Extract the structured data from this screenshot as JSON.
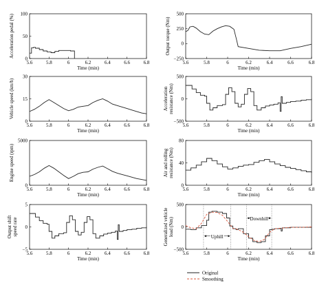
{
  "chart_data": [
    {
      "id": "accel-pedal",
      "type": "line",
      "ylabel": "Acceleration pedal (%)",
      "xlabel": "Time (min)",
      "xlim": [
        5.6,
        6.8
      ],
      "ylim": [
        0,
        100
      ],
      "xticks": [
        "5.6",
        "5.8",
        "6",
        "6.2",
        "6.4",
        "6.6",
        "6.8"
      ],
      "yticks": [
        "0",
        "50",
        "100"
      ],
      "grid": false,
      "series": [
        {
          "name": "",
          "step": true,
          "x": [
            5.6,
            5.62,
            5.64,
            5.66,
            5.7,
            5.74,
            5.78,
            5.82,
            5.86,
            5.9,
            5.94,
            5.98,
            6.02,
            6.06,
            6.061
          ],
          "y": [
            12,
            24,
            25,
            23,
            20,
            17,
            15,
            13,
            16,
            18,
            18,
            18,
            17,
            17,
            0
          ]
        }
      ]
    },
    {
      "id": "output-torque",
      "type": "line",
      "ylabel": "Output torque (Nm)",
      "xlabel": "Time (min)",
      "xlim": [
        5.6,
        6.8
      ],
      "ylim": [
        -250,
        500
      ],
      "xticks": [
        "5.6",
        "5.8",
        "6",
        "6.2",
        "6.4",
        "6.6",
        "6.8"
      ],
      "yticks": [
        "−250",
        "0",
        "250",
        "500"
      ],
      "grid": false,
      "series": [
        {
          "name": "",
          "step": false,
          "x": [
            5.6,
            5.62,
            5.64,
            5.67,
            5.7,
            5.74,
            5.78,
            5.82,
            5.86,
            5.9,
            5.94,
            5.98,
            6.02,
            6.06,
            6.08,
            6.1,
            6.2,
            6.3,
            6.4,
            6.5,
            6.6,
            6.7,
            6.8
          ],
          "y": [
            200,
            220,
            280,
            290,
            260,
            200,
            160,
            150,
            210,
            250,
            280,
            300,
            290,
            240,
            100,
            -50,
            -80,
            -110,
            -120,
            -120,
            -80,
            -50,
            -10
          ]
        }
      ]
    },
    {
      "id": "vehicle-speed",
      "type": "line",
      "ylabel": "Vehicle speed (km/h)",
      "xlabel": "Time (min)",
      "xlim": [
        5.6,
        6.8
      ],
      "ylim": [
        0,
        30
      ],
      "xticks": [
        "5.6",
        "5.8",
        "6",
        "6.2",
        "6.4",
        "6.6",
        "6.8"
      ],
      "yticks": [
        "0",
        "15",
        "30"
      ],
      "grid": false,
      "series": [
        {
          "name": "",
          "step": false,
          "x": [
            5.6,
            5.65,
            5.7,
            5.75,
            5.8,
            5.85,
            5.9,
            5.95,
            6.0,
            6.05,
            6.1,
            6.15,
            6.2,
            6.25,
            6.3,
            6.35,
            6.4,
            6.45,
            6.5,
            6.55,
            6.6,
            6.65,
            6.7,
            6.75,
            6.8
          ],
          "y": [
            6.5,
            8,
            10,
            12.5,
            14.5,
            12.5,
            10.5,
            8.5,
            7,
            8,
            9.5,
            10,
            10.5,
            12.5,
            14,
            15,
            13.5,
            11.5,
            10.5,
            9.5,
            8.5,
            7.5,
            6.5,
            5.5,
            5
          ]
        }
      ]
    },
    {
      "id": "accel-resistance",
      "type": "line",
      "ylabel": "Acceleration resistance (Nm)",
      "xlabel": "Time (min)",
      "xlim": [
        5.6,
        6.8
      ],
      "ylim": [
        -500,
        500
      ],
      "xticks": [
        "5.6",
        "5.8",
        "6",
        "6.2",
        "6.4",
        "6.6",
        "6.8"
      ],
      "yticks": [
        "−500",
        "0",
        "500"
      ],
      "grid": false,
      "series": [
        {
          "name": "",
          "step": true,
          "x": [
            5.6,
            5.63,
            5.66,
            5.7,
            5.74,
            5.78,
            5.8,
            5.83,
            5.86,
            5.9,
            5.95,
            5.98,
            6.01,
            6.04,
            6.07,
            6.1,
            6.13,
            6.16,
            6.19,
            6.22,
            6.25,
            6.28,
            6.32,
            6.36,
            6.4,
            6.44,
            6.48,
            6.5,
            6.51,
            6.52,
            6.56,
            6.6,
            6.65,
            6.7,
            6.75,
            6.8
          ],
          "y": [
            300,
            300,
            220,
            140,
            80,
            60,
            -100,
            -250,
            -200,
            -150,
            -130,
            100,
            250,
            160,
            -100,
            -180,
            -120,
            100,
            230,
            160,
            -150,
            -250,
            -200,
            -160,
            -140,
            -120,
            -90,
            -280,
            50,
            -100,
            -80,
            -60,
            -50,
            -30,
            -20,
            0
          ]
        }
      ]
    },
    {
      "id": "engine-speed",
      "type": "line",
      "ylabel": "Engine speed (rpm)",
      "xlabel": "Time (min)",
      "xlim": [
        5.6,
        6.8
      ],
      "ylim": [
        0,
        5000
      ],
      "xticks": [
        "5.6",
        "5.8",
        "6",
        "6.2",
        "6.4",
        "6.6",
        "6.8"
      ],
      "yticks": [
        "0",
        "5000"
      ],
      "grid": false,
      "series": [
        {
          "name": "",
          "step": false,
          "x": [
            5.6,
            5.65,
            5.7,
            5.75,
            5.8,
            5.85,
            5.9,
            5.95,
            6.0,
            6.05,
            6.1,
            6.15,
            6.2,
            6.25,
            6.3,
            6.35,
            6.4,
            6.45,
            6.5,
            6.55,
            6.6,
            6.65,
            6.7,
            6.75,
            6.8
          ],
          "y": [
            1000,
            1200,
            1500,
            1900,
            2200,
            1900,
            1500,
            1100,
            750,
            1000,
            1300,
            1450,
            1500,
            1800,
            2000,
            2150,
            1850,
            1550,
            1350,
            1200,
            1050,
            900,
            750,
            650,
            550
          ]
        }
      ]
    },
    {
      "id": "air-rolling-resistance",
      "type": "line",
      "ylabel": "Air and rolling resistance (Nm)",
      "xlabel": "Time (min)",
      "xlim": [
        5.6,
        6.8
      ],
      "ylim": [
        0,
        80
      ],
      "xticks": [
        "5.6",
        "5.8",
        "6",
        "6.2",
        "6.4",
        "6.6",
        "6.8"
      ],
      "yticks": [
        "0",
        "40",
        "80"
      ],
      "grid": false,
      "series": [
        {
          "name": "",
          "step": true,
          "x": [
            5.6,
            5.65,
            5.7,
            5.75,
            5.8,
            5.85,
            5.9,
            5.95,
            6.0,
            6.05,
            6.1,
            6.15,
            6.2,
            6.25,
            6.3,
            6.35,
            6.4,
            6.45,
            6.5,
            6.55,
            6.6,
            6.65,
            6.7,
            6.75,
            6.8
          ],
          "y": [
            27,
            31,
            36,
            42,
            48,
            44,
            38,
            33,
            29,
            31,
            34,
            36,
            37,
            41,
            44,
            46,
            42,
            38,
            35,
            32,
            30,
            28,
            26,
            24,
            22
          ]
        }
      ]
    },
    {
      "id": "output-shift-speed-rate",
      "type": "line",
      "ylabel": "Output shift speed rate",
      "xlabel": "Time (min)",
      "xlim": [
        5.6,
        6.8
      ],
      "ylim": [
        -5,
        5
      ],
      "xticks": [
        "5.6",
        "5.8",
        "6",
        "6.2",
        "6.4",
        "6.6",
        "6.8"
      ],
      "yticks": [
        "−5",
        "0",
        "5"
      ],
      "grid": false,
      "series": [
        {
          "name": "",
          "step": true,
          "x": [
            5.6,
            5.63,
            5.66,
            5.7,
            5.74,
            5.78,
            5.8,
            5.83,
            5.86,
            5.9,
            5.95,
            5.98,
            6.01,
            6.04,
            6.07,
            6.1,
            6.13,
            6.16,
            6.19,
            6.22,
            6.25,
            6.28,
            6.32,
            6.36,
            6.4,
            6.44,
            6.48,
            6.5,
            6.51,
            6.52,
            6.56,
            6.6,
            6.65,
            6.7,
            6.75,
            6.8
          ],
          "y": [
            3,
            3,
            2.2,
            1.4,
            0.8,
            0.6,
            -1,
            -2.5,
            -2,
            -1.5,
            -1.3,
            1,
            2.5,
            1.6,
            -1,
            -1.8,
            -1.2,
            1,
            2.3,
            1.6,
            -1.5,
            -2.5,
            -2,
            -1.6,
            -1.4,
            -1.2,
            -0.9,
            -2.8,
            0.5,
            -1,
            -0.8,
            -0.6,
            -0.5,
            -0.3,
            -0.2,
            0
          ]
        }
      ]
    },
    {
      "id": "generalized-vehicle-load",
      "type": "line",
      "ylabel": "Generalized vehicle load (Nm)",
      "xlabel": "Time (min)",
      "xlim": [
        5.6,
        6.8
      ],
      "ylim": [
        -500,
        500
      ],
      "xticks": [
        "5.6",
        "5.8",
        "6",
        "6.2",
        "6.4",
        "6.6",
        "6.8"
      ],
      "yticks": [
        "−500",
        "0",
        "500"
      ],
      "grid": false,
      "series": [
        {
          "name": "Original",
          "color": "#222222",
          "dash": "",
          "step": true,
          "x": [
            5.6,
            5.65,
            5.7,
            5.75,
            5.8,
            5.82,
            5.85,
            5.9,
            5.95,
            5.99,
            6.02,
            6.05,
            6.08,
            6.1,
            6.15,
            6.2,
            6.24,
            6.28,
            6.32,
            6.36,
            6.4,
            6.42,
            6.45,
            6.5,
            6.51,
            6.52,
            6.55,
            6.6,
            6.7,
            6.8
          ],
          "y": [
            -50,
            -60,
            -20,
            30,
            150,
            330,
            350,
            330,
            300,
            200,
            20,
            -40,
            -60,
            -40,
            -150,
            -250,
            -330,
            -350,
            -330,
            -200,
            -60,
            -50,
            -40,
            -30,
            -90,
            -20,
            -20,
            -10,
            -10,
            0
          ]
        },
        {
          "name": "Smoothing",
          "color": "#d9543a",
          "dash": "3,2",
          "step": false,
          "x": [
            5.6,
            5.65,
            5.7,
            5.75,
            5.8,
            5.85,
            5.9,
            5.95,
            6.0,
            6.05,
            6.1,
            6.15,
            6.2,
            6.25,
            6.3,
            6.35,
            6.4,
            6.45,
            6.5,
            6.55,
            6.6,
            6.7,
            6.8
          ],
          "y": [
            30,
            -20,
            -40,
            80,
            280,
            330,
            320,
            260,
            120,
            -30,
            -60,
            -120,
            -220,
            -300,
            -330,
            -280,
            -120,
            -40,
            -30,
            -20,
            -10,
            -10,
            0
          ]
        }
      ],
      "vlines": [
        5.77,
        6.03,
        6.18,
        6.42
      ],
      "annotations": [
        "Uphill",
        "Downhill"
      ]
    }
  ],
  "legend": {
    "items": [
      "Original",
      "Smoothing"
    ]
  }
}
